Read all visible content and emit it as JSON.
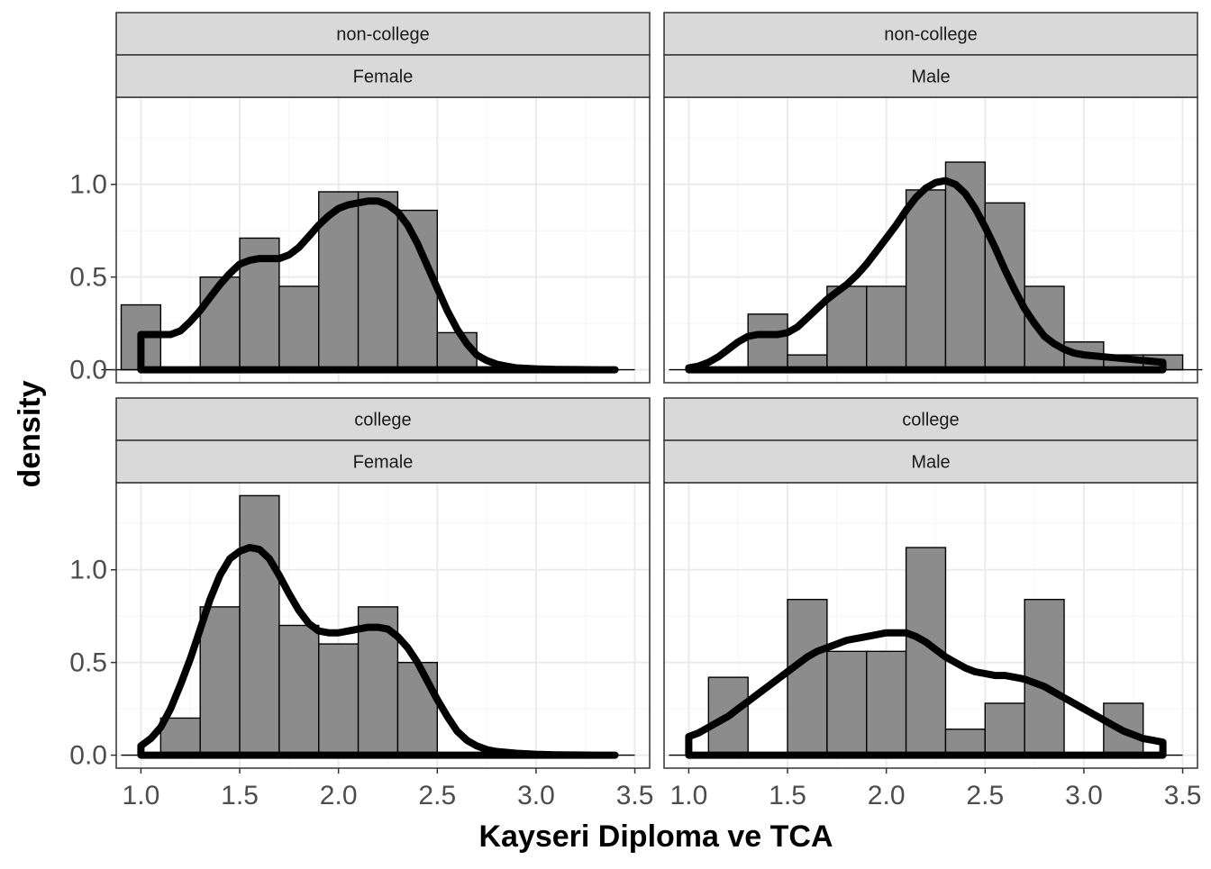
{
  "chart_data": {
    "type": "histogram",
    "xlabel": "Kayseri Diploma ve TCA",
    "ylabel": "density",
    "xlim": [
      0.875,
      3.575
    ],
    "ylim": [
      -0.07,
      1.47
    ],
    "x_ticks": [
      1.0,
      1.5,
      2.0,
      2.5,
      3.0,
      3.5
    ],
    "y_ticks": [
      0.0,
      0.5,
      1.0
    ],
    "x_tick_labels": [
      "1.0",
      "1.5",
      "2.0",
      "2.5",
      "3.0",
      "3.5"
    ],
    "y_tick_labels": [
      "0.0",
      "0.5",
      "1.0"
    ],
    "grid": true,
    "bin_width": 0.2,
    "panels": [
      {
        "strip_top": "non-college",
        "strip_bottom": "Female",
        "bins": [
          {
            "x0": 0.9,
            "x1": 1.1,
            "density": 0.35
          },
          {
            "x0": 1.1,
            "x1": 1.3,
            "density": 0.0
          },
          {
            "x0": 1.3,
            "x1": 1.5,
            "density": 0.5
          },
          {
            "x0": 1.5,
            "x1": 1.7,
            "density": 0.71
          },
          {
            "x0": 1.7,
            "x1": 1.9,
            "density": 0.45
          },
          {
            "x0": 1.9,
            "x1": 2.1,
            "density": 0.96
          },
          {
            "x0": 2.1,
            "x1": 2.3,
            "density": 0.96
          },
          {
            "x0": 2.3,
            "x1": 2.5,
            "density": 0.86
          },
          {
            "x0": 2.5,
            "x1": 2.7,
            "density": 0.2
          }
        ],
        "density_curve": {
          "x": [
            1.0,
            1.05,
            1.1,
            1.15,
            1.2,
            1.25,
            1.3,
            1.35,
            1.4,
            1.45,
            1.5,
            1.55,
            1.6,
            1.65,
            1.7,
            1.75,
            1.8,
            1.85,
            1.9,
            1.95,
            2.0,
            2.05,
            2.1,
            2.15,
            2.2,
            2.25,
            2.3,
            2.35,
            2.4,
            2.45,
            2.5,
            2.55,
            2.6,
            2.65,
            2.7,
            2.75,
            2.8,
            2.85,
            2.9,
            3.0,
            3.1,
            3.2,
            3.3,
            3.4
          ],
          "y": [
            0.19,
            0.19,
            0.19,
            0.19,
            0.21,
            0.26,
            0.32,
            0.39,
            0.46,
            0.52,
            0.57,
            0.59,
            0.6,
            0.6,
            0.6,
            0.62,
            0.66,
            0.72,
            0.78,
            0.83,
            0.87,
            0.89,
            0.9,
            0.91,
            0.91,
            0.89,
            0.85,
            0.78,
            0.68,
            0.56,
            0.44,
            0.32,
            0.22,
            0.14,
            0.08,
            0.05,
            0.03,
            0.02,
            0.01,
            0.005,
            0.002,
            0.001,
            0.0,
            0.0
          ]
        }
      },
      {
        "strip_top": "non-college",
        "strip_bottom": "Male",
        "bins": [
          {
            "x0": 1.1,
            "x1": 1.3,
            "density": 0.0
          },
          {
            "x0": 1.3,
            "x1": 1.5,
            "density": 0.3
          },
          {
            "x0": 1.5,
            "x1": 1.7,
            "density": 0.08
          },
          {
            "x0": 1.7,
            "x1": 1.9,
            "density": 0.45
          },
          {
            "x0": 1.9,
            "x1": 2.1,
            "density": 0.45
          },
          {
            "x0": 2.1,
            "x1": 2.3,
            "density": 0.97
          },
          {
            "x0": 2.3,
            "x1": 2.5,
            "density": 1.12
          },
          {
            "x0": 2.5,
            "x1": 2.7,
            "density": 0.9
          },
          {
            "x0": 2.7,
            "x1": 2.9,
            "density": 0.45
          },
          {
            "x0": 2.9,
            "x1": 3.1,
            "density": 0.15
          },
          {
            "x0": 3.1,
            "x1": 3.3,
            "density": 0.08
          },
          {
            "x0": 3.3,
            "x1": 3.5,
            "density": 0.08
          }
        ],
        "density_curve": {
          "x": [
            1.0,
            1.05,
            1.1,
            1.15,
            1.2,
            1.25,
            1.3,
            1.35,
            1.4,
            1.45,
            1.5,
            1.55,
            1.6,
            1.65,
            1.7,
            1.75,
            1.8,
            1.85,
            1.9,
            1.95,
            2.0,
            2.05,
            2.1,
            2.15,
            2.2,
            2.25,
            2.3,
            2.35,
            2.4,
            2.45,
            2.5,
            2.55,
            2.6,
            2.65,
            2.7,
            2.75,
            2.8,
            2.85,
            2.9,
            2.95,
            3.0,
            3.1,
            3.2,
            3.3,
            3.4
          ],
          "y": [
            0.01,
            0.02,
            0.04,
            0.07,
            0.11,
            0.15,
            0.18,
            0.19,
            0.19,
            0.19,
            0.2,
            0.23,
            0.28,
            0.33,
            0.38,
            0.42,
            0.46,
            0.51,
            0.57,
            0.64,
            0.71,
            0.78,
            0.86,
            0.93,
            0.98,
            1.01,
            1.02,
            1.0,
            0.95,
            0.87,
            0.77,
            0.66,
            0.54,
            0.43,
            0.33,
            0.25,
            0.18,
            0.14,
            0.11,
            0.09,
            0.08,
            0.07,
            0.06,
            0.05,
            0.04
          ]
        }
      },
      {
        "strip_top": "college",
        "strip_bottom": "Female",
        "bins": [
          {
            "x0": 1.1,
            "x1": 1.3,
            "density": 0.2
          },
          {
            "x0": 1.3,
            "x1": 1.5,
            "density": 0.8
          },
          {
            "x0": 1.5,
            "x1": 1.7,
            "density": 1.4
          },
          {
            "x0": 1.7,
            "x1": 1.9,
            "density": 0.7
          },
          {
            "x0": 1.9,
            "x1": 2.1,
            "density": 0.6
          },
          {
            "x0": 2.1,
            "x1": 2.3,
            "density": 0.8
          },
          {
            "x0": 2.3,
            "x1": 2.5,
            "density": 0.5
          }
        ],
        "density_curve": {
          "x": [
            1.0,
            1.05,
            1.1,
            1.15,
            1.2,
            1.25,
            1.3,
            1.35,
            1.4,
            1.45,
            1.5,
            1.55,
            1.6,
            1.65,
            1.7,
            1.75,
            1.8,
            1.85,
            1.9,
            1.95,
            2.0,
            2.05,
            2.1,
            2.15,
            2.2,
            2.25,
            2.3,
            2.35,
            2.4,
            2.45,
            2.5,
            2.55,
            2.6,
            2.65,
            2.7,
            2.75,
            2.8,
            2.9,
            3.0,
            3.1,
            3.2,
            3.3,
            3.4
          ],
          "y": [
            0.05,
            0.09,
            0.15,
            0.25,
            0.38,
            0.52,
            0.68,
            0.84,
            0.97,
            1.06,
            1.1,
            1.12,
            1.11,
            1.06,
            0.97,
            0.87,
            0.78,
            0.71,
            0.67,
            0.66,
            0.66,
            0.67,
            0.68,
            0.69,
            0.69,
            0.68,
            0.64,
            0.58,
            0.5,
            0.4,
            0.3,
            0.21,
            0.13,
            0.08,
            0.05,
            0.03,
            0.02,
            0.01,
            0.005,
            0.002,
            0.001,
            0.0,
            0.0
          ]
        }
      },
      {
        "strip_top": "college",
        "strip_bottom": "Male",
        "bins": [
          {
            "x0": 1.1,
            "x1": 1.3,
            "density": 0.42
          },
          {
            "x0": 1.3,
            "x1": 1.5,
            "density": 0.0
          },
          {
            "x0": 1.5,
            "x1": 1.7,
            "density": 0.84
          },
          {
            "x0": 1.7,
            "x1": 1.9,
            "density": 0.56
          },
          {
            "x0": 1.9,
            "x1": 2.1,
            "density": 0.56
          },
          {
            "x0": 2.1,
            "x1": 2.3,
            "density": 1.12
          },
          {
            "x0": 2.3,
            "x1": 2.5,
            "density": 0.14
          },
          {
            "x0": 2.5,
            "x1": 2.7,
            "density": 0.28
          },
          {
            "x0": 2.7,
            "x1": 2.9,
            "density": 0.84
          },
          {
            "x0": 2.9,
            "x1": 3.1,
            "density": 0.0
          },
          {
            "x0": 3.1,
            "x1": 3.3,
            "density": 0.28
          }
        ],
        "density_curve": {
          "x": [
            1.0,
            1.05,
            1.1,
            1.15,
            1.2,
            1.25,
            1.3,
            1.35,
            1.4,
            1.45,
            1.5,
            1.55,
            1.6,
            1.65,
            1.7,
            1.75,
            1.8,
            1.85,
            1.9,
            1.95,
            2.0,
            2.05,
            2.1,
            2.15,
            2.2,
            2.25,
            2.3,
            2.35,
            2.4,
            2.45,
            2.5,
            2.55,
            2.6,
            2.65,
            2.7,
            2.75,
            2.8,
            2.85,
            2.9,
            2.95,
            3.0,
            3.05,
            3.1,
            3.15,
            3.2,
            3.25,
            3.3,
            3.35,
            3.4
          ],
          "y": [
            0.1,
            0.12,
            0.15,
            0.18,
            0.21,
            0.25,
            0.29,
            0.33,
            0.37,
            0.41,
            0.45,
            0.49,
            0.53,
            0.56,
            0.58,
            0.6,
            0.62,
            0.63,
            0.64,
            0.65,
            0.66,
            0.66,
            0.66,
            0.64,
            0.61,
            0.57,
            0.53,
            0.5,
            0.47,
            0.45,
            0.44,
            0.43,
            0.43,
            0.42,
            0.41,
            0.39,
            0.37,
            0.34,
            0.31,
            0.28,
            0.25,
            0.22,
            0.19,
            0.16,
            0.13,
            0.11,
            0.09,
            0.08,
            0.07
          ]
        }
      }
    ]
  },
  "style": {
    "bar_fill": "#8c8c8c",
    "bar_stroke": "#000000",
    "curve_color": "#000000",
    "strip_fill": "#d9d9d9",
    "grid_major": "#ebebeb",
    "grid_minor": "#f5f5f5",
    "panel_border": "#333333"
  }
}
